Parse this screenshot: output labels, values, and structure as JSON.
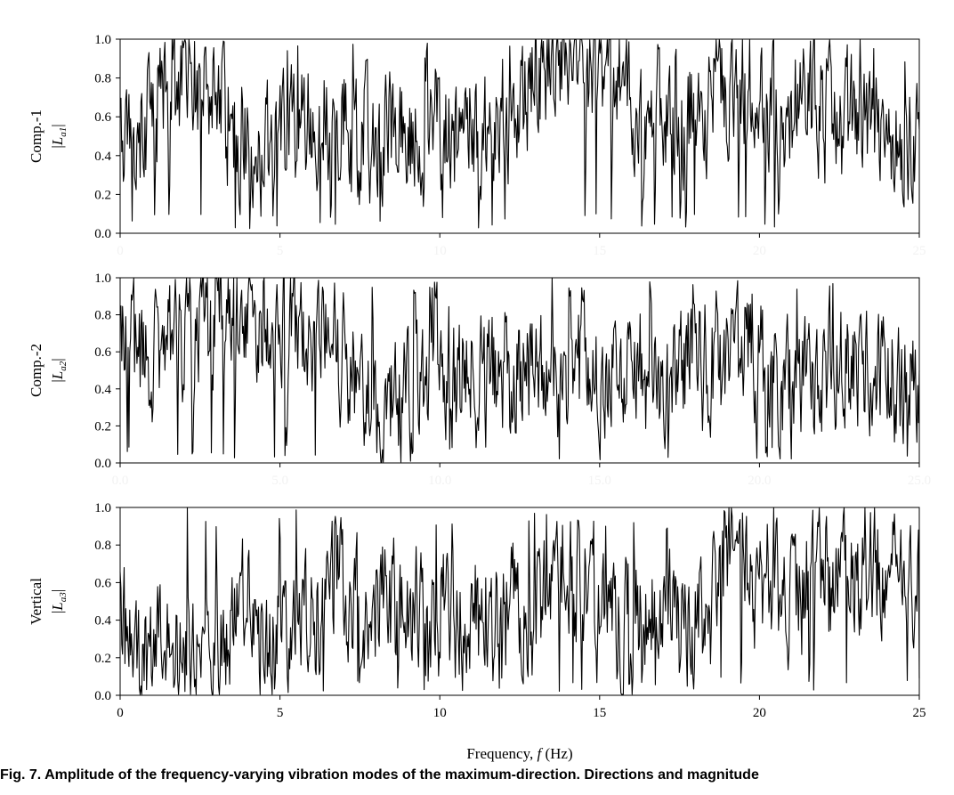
{
  "caption": "Fig. 7. Amplitude of the frequency-varying vibration modes of the maximum-direction. Directions and magnitude",
  "chart_data": [
    {
      "type": "line",
      "ylabel_top": "Comp.-1",
      "ylabel_sym": "L",
      "ylabel_sub": "a1",
      "xlabel": "",
      "xlim": [
        0,
        25
      ],
      "ylim": [
        0,
        1
      ],
      "xticks": [
        "0",
        "5",
        "10",
        "15",
        "20",
        "25"
      ],
      "xticks_faint": true,
      "yticks": [
        "0.0",
        "0.2",
        "0.4",
        "0.6",
        "0.8",
        "1.0"
      ],
      "series": [
        {
          "x_start": 0,
          "x_end": 25,
          "n": 1000,
          "seed": 17,
          "envelope": [
            [
              0,
              0.5
            ],
            [
              2.2,
              0.85
            ],
            [
              4,
              0.45
            ],
            [
              6,
              0.55
            ],
            [
              9,
              0.5
            ],
            [
              12,
              0.6
            ],
            [
              13,
              0.8
            ],
            [
              14.8,
              0.95
            ],
            [
              16,
              0.7
            ],
            [
              17.5,
              0.6
            ],
            [
              19,
              0.75
            ],
            [
              21,
              0.7
            ],
            [
              25,
              0.4
            ]
          ]
        }
      ]
    },
    {
      "type": "line",
      "ylabel_top": "Comp.-2",
      "ylabel_sym": "L",
      "ylabel_sub": "a2",
      "xlabel": "",
      "xlim": [
        0,
        25
      ],
      "ylim": [
        0,
        1
      ],
      "xticks": [
        "0.0",
        "5.0",
        "10.0",
        "15.0",
        "20.0",
        "25.0"
      ],
      "xticks_faint": true,
      "yticks": [
        "0.0",
        "0.2",
        "0.4",
        "0.6",
        "0.8",
        "1.0"
      ],
      "series": [
        {
          "x_start": 0,
          "x_end": 25,
          "n": 1000,
          "seed": 29,
          "envelope": [
            [
              0,
              0.65
            ],
            [
              1,
              0.55
            ],
            [
              2.5,
              0.8
            ],
            [
              5,
              0.75
            ],
            [
              6.5,
              0.65
            ],
            [
              8,
              0.3
            ],
            [
              10,
              0.5
            ],
            [
              12,
              0.45
            ],
            [
              15,
              0.5
            ],
            [
              17,
              0.45
            ],
            [
              19.5,
              0.6
            ],
            [
              21,
              0.4
            ],
            [
              23,
              0.55
            ],
            [
              25,
              0.4
            ]
          ]
        }
      ]
    },
    {
      "type": "line",
      "ylabel_top": "Vertical",
      "ylabel_sym": "L",
      "ylabel_sub": "a3",
      "xlabel": "Frequency, f (Hz)",
      "xlabel_main": "Frequency, ",
      "xlabel_sym": "f",
      "xlabel_unit": " (Hz)",
      "xlim": [
        0,
        25
      ],
      "ylim": [
        0,
        1
      ],
      "xticks": [
        "0",
        "5",
        "10",
        "15",
        "20",
        "25"
      ],
      "xticks_faint": false,
      "yticks": [
        "0.0",
        "0.2",
        "0.4",
        "0.6",
        "0.8",
        "1.0"
      ],
      "series": [
        {
          "x_start": 0,
          "x_end": 25,
          "n": 1000,
          "seed": 41,
          "envelope": [
            [
              0,
              0.3
            ],
            [
              1.5,
              0.2
            ],
            [
              3,
              0.15
            ],
            [
              3.8,
              0.55
            ],
            [
              4.5,
              0.2
            ],
            [
              5.5,
              0.3
            ],
            [
              7,
              0.55
            ],
            [
              9,
              0.45
            ],
            [
              11,
              0.4
            ],
            [
              13,
              0.45
            ],
            [
              14,
              0.75
            ],
            [
              15,
              0.35
            ],
            [
              17,
              0.4
            ],
            [
              18.5,
              0.45
            ],
            [
              19,
              0.65
            ],
            [
              21,
              0.55
            ],
            [
              23,
              0.65
            ],
            [
              25,
              0.65
            ]
          ]
        }
      ]
    }
  ]
}
